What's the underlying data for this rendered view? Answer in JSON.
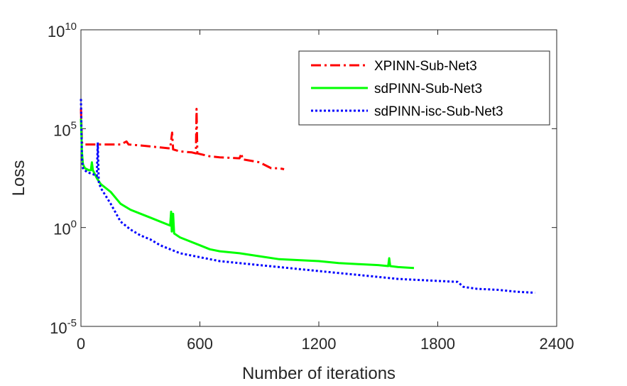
{
  "chart_data": {
    "type": "line",
    "title": "",
    "xlabel": "Number of iterations",
    "ylabel": "Loss",
    "xlim": [
      0,
      2400
    ],
    "ylim_log10": [
      -5,
      10
    ],
    "yscale": "log",
    "x_ticks": [
      0,
      600,
      1200,
      1800,
      2400
    ],
    "x_tick_labels": [
      "0",
      "600",
      "1200",
      "1800",
      "2400"
    ],
    "y_ticks": [
      {
        "exp": -5,
        "base": "10",
        "sup": "-5"
      },
      {
        "exp": 0,
        "base": "10",
        "sup": "0"
      },
      {
        "exp": 5,
        "base": "10",
        "sup": "5"
      },
      {
        "exp": 10,
        "base": "10",
        "sup": "10"
      }
    ],
    "legend_position": "top-right",
    "series": [
      {
        "name": "XPINN-Sub-Net3",
        "color": "#ff0000",
        "style": "dashdot",
        "points": [
          [
            0,
            6.0
          ],
          [
            5,
            4.3
          ],
          [
            10,
            4.2
          ],
          [
            30,
            4.2
          ],
          [
            100,
            4.2
          ],
          [
            200,
            4.2
          ],
          [
            230,
            4.35
          ],
          [
            240,
            4.2
          ],
          [
            300,
            4.15
          ],
          [
            400,
            4.05
          ],
          [
            450,
            4.0
          ],
          [
            460,
            4.8
          ],
          [
            465,
            3.95
          ],
          [
            500,
            3.85
          ],
          [
            560,
            3.8
          ],
          [
            580,
            3.75
          ],
          [
            583,
            6.0
          ],
          [
            587,
            3.75
          ],
          [
            650,
            3.6
          ],
          [
            700,
            3.55
          ],
          [
            800,
            3.5
          ],
          [
            810,
            3.75
          ],
          [
            815,
            3.45
          ],
          [
            900,
            3.3
          ],
          [
            960,
            3.0
          ],
          [
            1000,
            3.0
          ],
          [
            1025,
            2.95
          ]
        ]
      },
      {
        "name": "sdPINN-Sub-Net3",
        "color": "#00ff00",
        "style": "solid",
        "points": [
          [
            0,
            5.5
          ],
          [
            5,
            3.8
          ],
          [
            10,
            3.2
          ],
          [
            20,
            3.0
          ],
          [
            40,
            2.9
          ],
          [
            50,
            2.9
          ],
          [
            55,
            3.3
          ],
          [
            60,
            2.9
          ],
          [
            80,
            2.5
          ],
          [
            100,
            2.2
          ],
          [
            150,
            1.8
          ],
          [
            200,
            1.2
          ],
          [
            250,
            0.9
          ],
          [
            300,
            0.7
          ],
          [
            350,
            0.5
          ],
          [
            400,
            0.3
          ],
          [
            450,
            0.1
          ],
          [
            455,
            0.8
          ],
          [
            458,
            -0.2
          ],
          [
            465,
            0.7
          ],
          [
            470,
            -0.3
          ],
          [
            500,
            -0.5
          ],
          [
            600,
            -0.9
          ],
          [
            650,
            -1.1
          ],
          [
            700,
            -1.2
          ],
          [
            800,
            -1.3
          ],
          [
            900,
            -1.45
          ],
          [
            1000,
            -1.6
          ],
          [
            1100,
            -1.65
          ],
          [
            1200,
            -1.7
          ],
          [
            1300,
            -1.8
          ],
          [
            1400,
            -1.85
          ],
          [
            1500,
            -1.9
          ],
          [
            1550,
            -1.95
          ],
          [
            1555,
            -1.55
          ],
          [
            1560,
            -1.95
          ],
          [
            1600,
            -2.0
          ],
          [
            1680,
            -2.05
          ]
        ]
      },
      {
        "name": "sdPINN-isc-Sub-Net3",
        "color": "#0000ff",
        "style": "dotted",
        "points": [
          [
            0,
            6.5
          ],
          [
            5,
            3.5
          ],
          [
            10,
            3.0
          ],
          [
            30,
            2.8
          ],
          [
            60,
            2.7
          ],
          [
            80,
            2.6
          ],
          [
            85,
            4.3
          ],
          [
            90,
            2.3
          ],
          [
            100,
            2.0
          ],
          [
            150,
            1.2
          ],
          [
            200,
            0.3
          ],
          [
            250,
            -0.1
          ],
          [
            300,
            -0.4
          ],
          [
            350,
            -0.6
          ],
          [
            400,
            -0.9
          ],
          [
            450,
            -1.1
          ],
          [
            500,
            -1.3
          ],
          [
            600,
            -1.5
          ],
          [
            700,
            -1.7
          ],
          [
            800,
            -1.8
          ],
          [
            900,
            -1.9
          ],
          [
            1000,
            -2.0
          ],
          [
            1100,
            -2.1
          ],
          [
            1200,
            -2.2
          ],
          [
            1300,
            -2.3
          ],
          [
            1400,
            -2.4
          ],
          [
            1500,
            -2.5
          ],
          [
            1600,
            -2.6
          ],
          [
            1700,
            -2.65
          ],
          [
            1800,
            -2.7
          ],
          [
            1900,
            -2.75
          ],
          [
            1930,
            -3.0
          ],
          [
            2000,
            -3.1
          ],
          [
            2100,
            -3.15
          ],
          [
            2200,
            -3.25
          ],
          [
            2290,
            -3.3
          ]
        ]
      }
    ]
  }
}
